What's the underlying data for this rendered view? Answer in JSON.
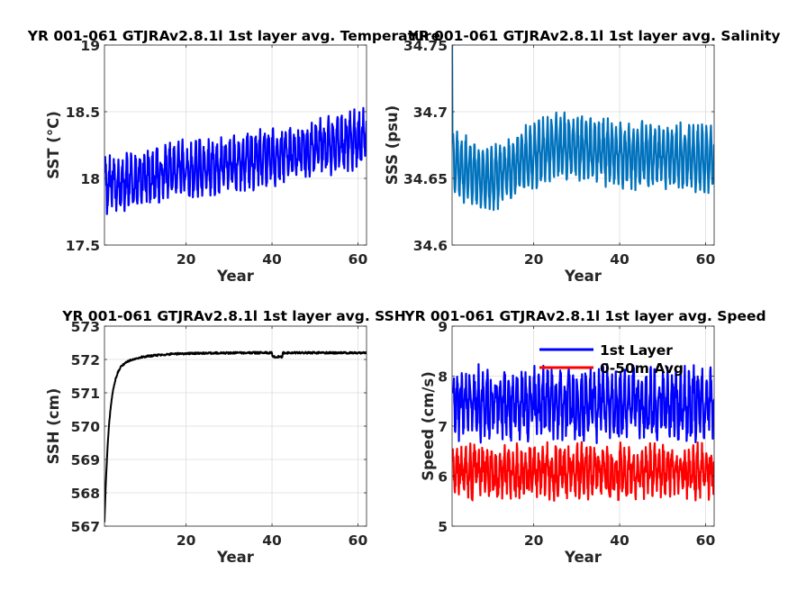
{
  "chart_data": [
    {
      "id": "sst",
      "type": "line",
      "title": "YR 001-061 GTJRAv2.8.1l 1st layer avg. Temperature",
      "xlabel": "Year",
      "ylabel": "SST (°C)",
      "xlim": [
        1,
        62
      ],
      "ylim": [
        17.5,
        19
      ],
      "xticks": [
        20,
        40,
        60
      ],
      "yticks": [
        17.5,
        18,
        18.5,
        19
      ],
      "ytick_labels": [
        "17.5",
        "18",
        "18.5",
        "19"
      ],
      "grid": true,
      "series": [
        {
          "color": "#0000ff",
          "x_start": 1,
          "x_end": 62,
          "trend_start": 17.95,
          "trend_end": 18.3,
          "seasonal_amplitude": 0.15,
          "noise": 0.09,
          "min": 17.6,
          "max": 18.8
        }
      ]
    },
    {
      "id": "sss",
      "type": "line",
      "title": "YR 001-061 GTJRAv2.8.1l 1st layer avg. Salinity",
      "xlabel": "Year",
      "ylabel": "SSS (psu)",
      "xlim": [
        1,
        62
      ],
      "ylim": [
        34.6,
        34.75
      ],
      "xticks": [
        20,
        40,
        60
      ],
      "yticks": [
        34.6,
        34.65,
        34.7,
        34.75
      ],
      "ytick_labels": [
        "34.6",
        "34.65",
        "34.7",
        "34.75"
      ],
      "grid": true,
      "series": [
        {
          "color": "#0072bd",
          "x_start": 1,
          "x_end": 62,
          "trend": [
            [
              1,
              34.66
            ],
            [
              10,
              34.65
            ],
            [
              25,
              34.675
            ],
            [
              40,
              34.668
            ],
            [
              62,
              34.665
            ]
          ],
          "seasonal_amplitude": 0.021,
          "noise": 0.006,
          "min": 34.6,
          "max": 34.75,
          "initial_value": 34.75
        }
      ]
    },
    {
      "id": "ssh",
      "type": "line",
      "title": "YR 001-061 GTJRAv2.8.1l 1st layer avg. SSH",
      "xlabel": "Year",
      "ylabel": "SSH (cm)",
      "xlim": [
        1,
        62
      ],
      "ylim": [
        567,
        573
      ],
      "xticks": [
        20,
        40,
        60
      ],
      "yticks": [
        567,
        568,
        569,
        570,
        571,
        572,
        573
      ],
      "ytick_labels": [
        "567",
        "568",
        "569",
        "570",
        "571",
        "572",
        "573"
      ],
      "grid": true,
      "series": [
        {
          "color": "#000000",
          "x_start": 1,
          "x_end": 62,
          "start_value": 567.65,
          "plateau": 572.2,
          "noise": 0.03
        }
      ]
    },
    {
      "id": "speed",
      "type": "line",
      "title": "YR 001-061 GTJRAv2.8.1l 1st layer avg. Speed",
      "xlabel": "Year",
      "ylabel": "Speed (cm/s)",
      "xlim": [
        1,
        62
      ],
      "ylim": [
        5,
        9
      ],
      "xticks": [
        20,
        40,
        60
      ],
      "yticks": [
        5,
        6,
        7,
        8,
        9
      ],
      "ytick_labels": [
        "5",
        "6",
        "7",
        "8",
        "9"
      ],
      "grid": true,
      "legend": "top-right",
      "series": [
        {
          "name": "1st Layer",
          "color": "#0000ff",
          "x_start": 1,
          "x_end": 62,
          "mean": 7.45,
          "amplitude": 0.5,
          "noise": 0.3,
          "min": 6.5,
          "max": 8.9
        },
        {
          "name": "0-50m Avg",
          "color": "#ff0000",
          "x_start": 1,
          "x_end": 62,
          "mean": 6.1,
          "amplitude": 0.35,
          "noise": 0.25,
          "min": 5.0,
          "max": 7.0
        }
      ]
    }
  ]
}
